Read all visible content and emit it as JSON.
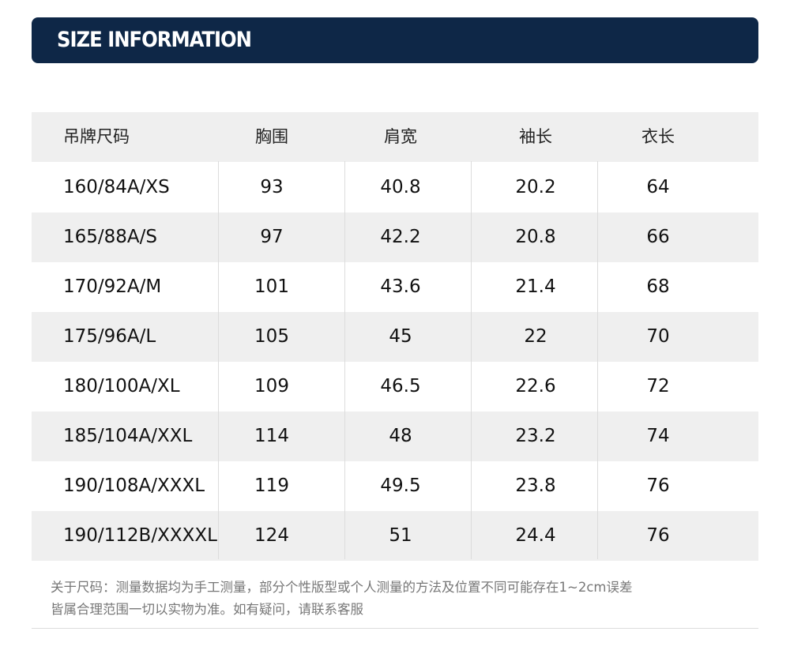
{
  "header": {
    "title": "SIZE INFORMATION"
  },
  "table": {
    "columns": [
      "吊牌尺码",
      "胸围",
      "肩宽",
      "袖长",
      "衣长"
    ],
    "rows": [
      [
        "160/84A/XS",
        93,
        40.8,
        20.2,
        64
      ],
      [
        "165/88A/S",
        97,
        42.2,
        20.8,
        66
      ],
      [
        "170/92A/M",
        101,
        43.6,
        21.4,
        68
      ],
      [
        "175/96A/L",
        105,
        45,
        22,
        70
      ],
      [
        "180/100A/XL",
        109,
        46.5,
        22.6,
        72
      ],
      [
        "185/104A/XXL",
        114,
        48,
        23.2,
        74
      ],
      [
        "190/108A/XXXL",
        119,
        49.5,
        23.8,
        76
      ],
      [
        "190/112B/XXXXL",
        124,
        51,
        24.4,
        76
      ]
    ]
  },
  "note": {
    "lines": [
      "关于尺码：测量数据均为手工测量，部分个性版型或个人测量的方法及位置不同可能存在1~2cm误差",
      "皆属合理范围一切以实物为准。如有疑问，请联系客服"
    ]
  }
}
